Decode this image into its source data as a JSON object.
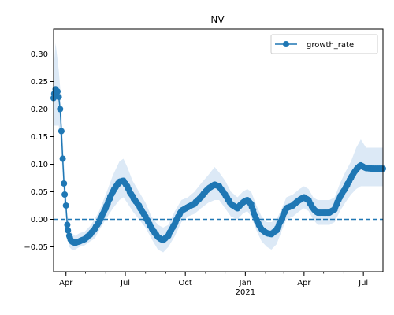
{
  "chart_data": {
    "type": "line",
    "title": "NV",
    "xlabel": "",
    "ylabel": "",
    "x_range": [
      "2020-03-13",
      "2021-07-31"
    ],
    "ylim": [
      -0.095,
      0.345
    ],
    "yticks": [
      -0.05,
      0.0,
      0.05,
      0.1,
      0.15,
      0.2,
      0.25,
      0.3
    ],
    "ytick_labels": [
      "−0.05",
      "0.00",
      "0.05",
      "0.10",
      "0.15",
      "0.20",
      "0.25",
      "0.30"
    ],
    "xticks": [
      {
        "date": "2020-04-01",
        "label": "Apr",
        "sublabel": ""
      },
      {
        "date": "2020-07-01",
        "label": "Jul",
        "sublabel": ""
      },
      {
        "date": "2020-10-01",
        "label": "Oct",
        "sublabel": ""
      },
      {
        "date": "2021-01-01",
        "label": "Jan",
        "sublabel": "2021"
      },
      {
        "date": "2021-04-01",
        "label": "Apr",
        "sublabel": ""
      },
      {
        "date": "2021-07-01",
        "label": "Jul",
        "sublabel": ""
      }
    ],
    "legend": {
      "position": "top-right",
      "entries": [
        "growth_rate"
      ]
    },
    "reference_line": {
      "y": 0.0,
      "style": "dashed"
    },
    "grid": false,
    "colors": {
      "line": "#1f77b4",
      "band": "#dce9f6",
      "reference": "#1f77b4"
    },
    "series": [
      {
        "name": "growth_rate",
        "points": [
          [
            "2020-03-13",
            0.22,
            0.17,
            0.27
          ],
          [
            "2020-03-16",
            0.236,
            0.17,
            0.32
          ],
          [
            "2020-03-19",
            0.232,
            0.17,
            0.29
          ],
          [
            "2020-03-21",
            0.222,
            0.17,
            0.27
          ],
          [
            "2020-03-23",
            0.2,
            0.15,
            0.24
          ],
          [
            "2020-03-25",
            0.16,
            0.12,
            0.2
          ],
          [
            "2020-03-27",
            0.11,
            0.08,
            0.15
          ],
          [
            "2020-03-29",
            0.065,
            0.03,
            0.1
          ],
          [
            "2020-04-01",
            0.025,
            0.0,
            0.05
          ],
          [
            "2020-04-03",
            -0.01,
            -0.03,
            0.01
          ],
          [
            "2020-04-06",
            -0.03,
            -0.05,
            -0.01
          ],
          [
            "2020-04-10",
            -0.04,
            -0.055,
            -0.025
          ],
          [
            "2020-04-15",
            -0.043,
            -0.055,
            -0.03
          ],
          [
            "2020-04-22",
            -0.04,
            -0.05,
            -0.025
          ],
          [
            "2020-04-30",
            -0.036,
            -0.047,
            -0.022
          ],
          [
            "2020-05-08",
            -0.028,
            -0.04,
            -0.012
          ],
          [
            "2020-05-15",
            -0.018,
            -0.035,
            0.0
          ],
          [
            "2020-05-22",
            -0.005,
            -0.02,
            0.015
          ],
          [
            "2020-06-01",
            0.02,
            0.0,
            0.045
          ],
          [
            "2020-06-12",
            0.05,
            0.02,
            0.08
          ],
          [
            "2020-06-22",
            0.068,
            0.035,
            0.105
          ],
          [
            "2020-06-28",
            0.07,
            0.04,
            0.11
          ],
          [
            "2020-07-04",
            0.06,
            0.03,
            0.095
          ],
          [
            "2020-07-12",
            0.042,
            0.015,
            0.07
          ],
          [
            "2020-07-22",
            0.025,
            0.0,
            0.05
          ],
          [
            "2020-08-01",
            0.005,
            -0.015,
            0.03
          ],
          [
            "2020-08-10",
            -0.015,
            -0.035,
            0.005
          ],
          [
            "2020-08-20",
            -0.032,
            -0.055,
            -0.01
          ],
          [
            "2020-08-28",
            -0.038,
            -0.06,
            -0.015
          ],
          [
            "2020-09-05",
            -0.03,
            -0.05,
            -0.01
          ],
          [
            "2020-09-15",
            -0.008,
            -0.03,
            0.015
          ],
          [
            "2020-09-25",
            0.015,
            -0.005,
            0.035
          ],
          [
            "2020-10-05",
            0.022,
            0.005,
            0.04
          ],
          [
            "2020-10-15",
            0.028,
            0.01,
            0.05
          ],
          [
            "2020-10-25",
            0.04,
            0.02,
            0.065
          ],
          [
            "2020-11-05",
            0.055,
            0.03,
            0.08
          ],
          [
            "2020-11-15",
            0.063,
            0.035,
            0.095
          ],
          [
            "2020-11-22",
            0.06,
            0.035,
            0.085
          ],
          [
            "2020-12-01",
            0.045,
            0.02,
            0.07
          ],
          [
            "2020-12-10",
            0.028,
            0.005,
            0.05
          ],
          [
            "2020-12-20",
            0.02,
            0.0,
            0.04
          ],
          [
            "2020-12-28",
            0.03,
            0.01,
            0.05
          ],
          [
            "2021-01-04",
            0.035,
            0.015,
            0.055
          ],
          [
            "2021-01-10",
            0.028,
            0.005,
            0.05
          ],
          [
            "2021-01-18",
            0.0,
            -0.02,
            0.025
          ],
          [
            "2021-01-26",
            -0.018,
            -0.04,
            0.005
          ],
          [
            "2021-02-03",
            -0.025,
            -0.05,
            -0.005
          ],
          [
            "2021-02-10",
            -0.027,
            -0.055,
            -0.005
          ],
          [
            "2021-02-18",
            -0.02,
            -0.045,
            0.0
          ],
          [
            "2021-02-26",
            0.0,
            -0.02,
            0.02
          ],
          [
            "2021-03-05",
            0.02,
            0.0,
            0.04
          ],
          [
            "2021-03-15",
            0.025,
            0.005,
            0.045
          ],
          [
            "2021-03-25",
            0.035,
            0.015,
            0.055
          ],
          [
            "2021-04-01",
            0.04,
            0.02,
            0.06
          ],
          [
            "2021-04-08",
            0.035,
            0.015,
            0.055
          ],
          [
            "2021-04-15",
            0.02,
            0.0,
            0.04
          ],
          [
            "2021-04-22",
            0.012,
            -0.01,
            0.035
          ],
          [
            "2021-05-01",
            0.012,
            -0.01,
            0.035
          ],
          [
            "2021-05-10",
            0.012,
            -0.01,
            0.035
          ],
          [
            "2021-05-18",
            0.018,
            -0.005,
            0.04
          ],
          [
            "2021-05-26",
            0.04,
            0.015,
            0.065
          ],
          [
            "2021-06-03",
            0.055,
            0.03,
            0.085
          ],
          [
            "2021-06-12",
            0.075,
            0.045,
            0.105
          ],
          [
            "2021-06-20",
            0.09,
            0.055,
            0.13
          ],
          [
            "2021-06-27",
            0.098,
            0.06,
            0.145
          ],
          [
            "2021-07-05",
            0.093,
            0.06,
            0.13
          ],
          [
            "2021-07-15",
            0.092,
            0.06,
            0.13
          ],
          [
            "2021-07-25",
            0.092,
            0.06,
            0.13
          ],
          [
            "2021-07-31",
            0.092,
            0.06,
            0.13
          ]
        ]
      }
    ]
  }
}
